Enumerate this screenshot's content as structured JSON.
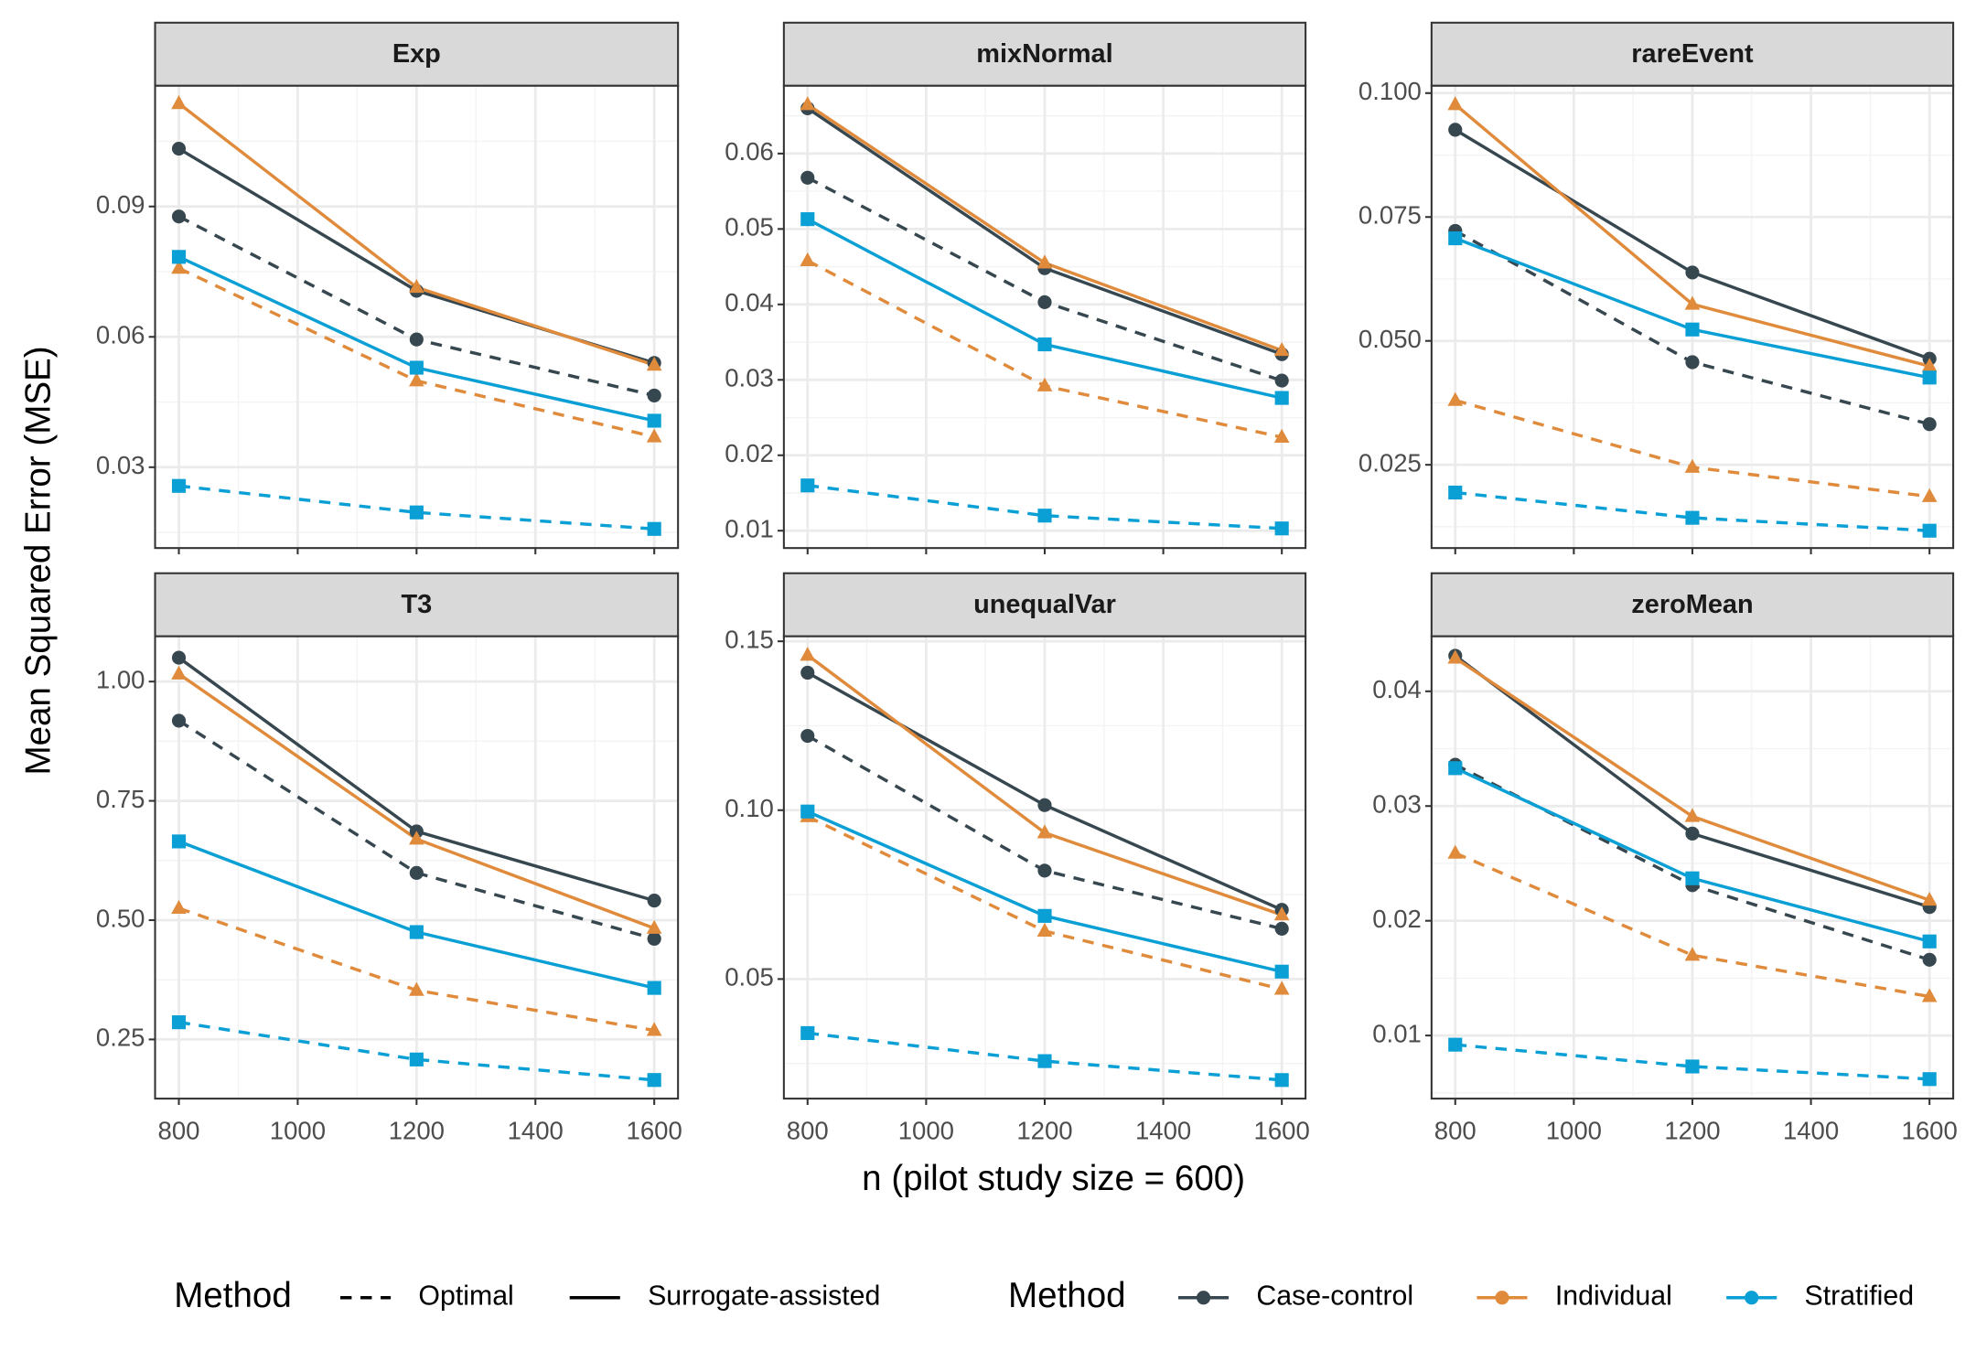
{
  "x_label": "n (pilot study size = 600)",
  "y_label": "Mean Squared Error (MSE)",
  "legends": {
    "linetype": {
      "title": "Method",
      "entries": [
        {
          "name": "Optimal",
          "dashed": true
        },
        {
          "name": "Surrogate-assisted",
          "dashed": false
        }
      ]
    },
    "color": {
      "title": "Method",
      "entries": [
        {
          "name": "Case-control",
          "color": "#37474f",
          "marker": "circle"
        },
        {
          "name": "Individual",
          "color": "#e08b3c",
          "marker": "triangle"
        },
        {
          "name": "Stratified",
          "color": "#0aa0d6",
          "marker": "square"
        }
      ]
    }
  },
  "chart_data": [
    {
      "type": "line",
      "title": "Exp",
      "x": [
        800,
        1200,
        1600
      ],
      "xlim": [
        760,
        1640
      ],
      "xticks": [
        800,
        1000,
        1200,
        1400,
        1600
      ],
      "ylim": [
        0.0114,
        0.1178
      ],
      "yticks": [
        0.03,
        0.06,
        0.09
      ],
      "grid": true,
      "series": [
        {
          "name": "Case-control",
          "linetype": "Surrogate-assisted",
          "color": "#37474f",
          "values": [
            0.1033,
            0.0706,
            0.054
          ]
        },
        {
          "name": "Case-control",
          "linetype": "Optimal",
          "color": "#37474f",
          "values": [
            0.0877,
            0.0594,
            0.0465
          ]
        },
        {
          "name": "Individual",
          "linetype": "Surrogate-assisted",
          "color": "#e08b3c",
          "values": [
            0.1137,
            0.0714,
            0.0535
          ]
        },
        {
          "name": "Individual",
          "linetype": "Optimal",
          "color": "#e08b3c",
          "values": [
            0.0758,
            0.0499,
            0.037
          ]
        },
        {
          "name": "Stratified",
          "linetype": "Surrogate-assisted",
          "color": "#0aa0d6",
          "values": [
            0.0784,
            0.0529,
            0.0407
          ]
        },
        {
          "name": "Stratified",
          "linetype": "Optimal",
          "color": "#0aa0d6",
          "values": [
            0.0257,
            0.0196,
            0.0158
          ]
        }
      ]
    },
    {
      "type": "line",
      "title": "mixNormal",
      "x": [
        800,
        1200,
        1600
      ],
      "xlim": [
        760,
        1640
      ],
      "xticks": [
        800,
        1000,
        1200,
        1400,
        1600
      ],
      "ylim": [
        0.0077,
        0.069
      ],
      "yticks": [
        0.01,
        0.02,
        0.03,
        0.04,
        0.05,
        0.06
      ],
      "grid": true,
      "series": [
        {
          "name": "Case-control",
          "linetype": "Surrogate-assisted",
          "color": "#37474f",
          "values": [
            0.066,
            0.0448,
            0.0334
          ]
        },
        {
          "name": "Case-control",
          "linetype": "Optimal",
          "color": "#37474f",
          "values": [
            0.0568,
            0.0403,
            0.0299
          ]
        },
        {
          "name": "Individual",
          "linetype": "Surrogate-assisted",
          "color": "#e08b3c",
          "values": [
            0.0665,
            0.0455,
            0.0339
          ]
        },
        {
          "name": "Individual",
          "linetype": "Optimal",
          "color": "#e08b3c",
          "values": [
            0.0458,
            0.0292,
            0.0224
          ]
        },
        {
          "name": "Stratified",
          "linetype": "Surrogate-assisted",
          "color": "#0aa0d6",
          "values": [
            0.0513,
            0.0347,
            0.0276
          ]
        },
        {
          "name": "Stratified",
          "linetype": "Optimal",
          "color": "#0aa0d6",
          "values": [
            0.016,
            0.012,
            0.0103
          ]
        }
      ]
    },
    {
      "type": "line",
      "title": "rareEvent",
      "x": [
        800,
        1200,
        1600
      ],
      "xlim": [
        760,
        1640
      ],
      "xticks": [
        800,
        1000,
        1200,
        1400,
        1600
      ],
      "ylim": [
        0.0082,
        0.1015
      ],
      "yticks": [
        0.025,
        {
          "value": 0.05,
          "label": "0.050"
        },
        0.075,
        {
          "value": 0.1,
          "label": "0.100"
        }
      ],
      "grid": true,
      "series": [
        {
          "name": "Case-control",
          "linetype": "Surrogate-assisted",
          "color": "#37474f",
          "values": [
            0.0926,
            0.0638,
            0.0464
          ]
        },
        {
          "name": "Case-control",
          "linetype": "Optimal",
          "color": "#37474f",
          "values": [
            0.0722,
            0.0457,
            0.0332
          ]
        },
        {
          "name": "Individual",
          "linetype": "Surrogate-assisted",
          "color": "#e08b3c",
          "values": [
            0.0977,
            0.0574,
            0.0449
          ]
        },
        {
          "name": "Individual",
          "linetype": "Optimal",
          "color": "#e08b3c",
          "values": [
            0.038,
            0.0245,
            0.0186
          ]
        },
        {
          "name": "Stratified",
          "linetype": "Surrogate-assisted",
          "color": "#0aa0d6",
          "values": [
            0.0707,
            0.0523,
            0.0426
          ]
        },
        {
          "name": "Stratified",
          "linetype": "Optimal",
          "color": "#0aa0d6",
          "values": [
            0.0194,
            0.0143,
            0.0117
          ]
        }
      ]
    },
    {
      "type": "line",
      "title": "T3",
      "x": [
        800,
        1200,
        1600
      ],
      "xlim": [
        760,
        1640
      ],
      "xticks": [
        800,
        1000,
        1200,
        1400,
        1600
      ],
      "ylim": [
        0.126,
        1.095
      ],
      "yticks": [
        0.25,
        {
          "value": 0.5,
          "label": "0.50"
        },
        0.75,
        {
          "value": 1,
          "label": "1.00"
        }
      ],
      "grid": true,
      "series": [
        {
          "name": "Case-control",
          "linetype": "Surrogate-assisted",
          "color": "#37474f",
          "values": [
            1.05,
            0.686,
            0.541
          ]
        },
        {
          "name": "Case-control",
          "linetype": "Optimal",
          "color": "#37474f",
          "values": [
            0.918,
            0.599,
            0.461
          ]
        },
        {
          "name": "Individual",
          "linetype": "Surrogate-assisted",
          "color": "#e08b3c",
          "values": [
            1.016,
            0.67,
            0.483
          ]
        },
        {
          "name": "Individual",
          "linetype": "Optimal",
          "color": "#e08b3c",
          "values": [
            0.525,
            0.353,
            0.269
          ]
        },
        {
          "name": "Stratified",
          "linetype": "Surrogate-assisted",
          "color": "#0aa0d6",
          "values": [
            0.665,
            0.475,
            0.358
          ]
        },
        {
          "name": "Stratified",
          "linetype": "Optimal",
          "color": "#0aa0d6",
          "values": [
            0.286,
            0.208,
            0.165
          ]
        }
      ]
    },
    {
      "type": "line",
      "title": "unequalVar",
      "x": [
        800,
        1200,
        1600
      ],
      "xlim": [
        760,
        1640
      ],
      "xticks": [
        800,
        1000,
        1200,
        1400,
        1600
      ],
      "ylim": [
        0.0146,
        0.1515
      ],
      "yticks": [
        0.05,
        {
          "value": 0.1,
          "label": "0.10"
        },
        0.15
      ],
      "grid": true,
      "series": [
        {
          "name": "Case-control",
          "linetype": "Surrogate-assisted",
          "color": "#37474f",
          "values": [
            0.1407,
            0.1015,
            0.0705
          ]
        },
        {
          "name": "Case-control",
          "linetype": "Optimal",
          "color": "#37474f",
          "values": [
            0.122,
            0.0821,
            0.0649
          ]
        },
        {
          "name": "Individual",
          "linetype": "Surrogate-assisted",
          "color": "#e08b3c",
          "values": [
            0.1459,
            0.0933,
            0.069
          ]
        },
        {
          "name": "Individual",
          "linetype": "Optimal",
          "color": "#e08b3c",
          "values": [
            0.0981,
            0.0642,
            0.047
          ]
        },
        {
          "name": "Stratified",
          "linetype": "Surrogate-assisted",
          "color": "#0aa0d6",
          "values": [
            0.0996,
            0.0687,
            0.0522
          ]
        },
        {
          "name": "Stratified",
          "linetype": "Optimal",
          "color": "#0aa0d6",
          "values": [
            0.034,
            0.0257,
            0.0201
          ]
        }
      ]
    },
    {
      "type": "line",
      "title": "zeroMean",
      "x": [
        800,
        1200,
        1600
      ],
      "xlim": [
        760,
        1640
      ],
      "xticks": [
        800,
        1000,
        1200,
        1400,
        1600
      ],
      "ylim": [
        0.0045,
        0.0448
      ],
      "yticks": [
        0.01,
        0.02,
        0.03,
        0.04
      ],
      "grid": true,
      "series": [
        {
          "name": "Case-control",
          "linetype": "Surrogate-assisted",
          "color": "#37474f",
          "values": [
            0.0431,
            0.0276,
            0.0212
          ]
        },
        {
          "name": "Case-control",
          "linetype": "Optimal",
          "color": "#37474f",
          "values": [
            0.0336,
            0.0231,
            0.0166
          ]
        },
        {
          "name": "Individual",
          "linetype": "Surrogate-assisted",
          "color": "#e08b3c",
          "values": [
            0.0429,
            0.0291,
            0.0218
          ]
        },
        {
          "name": "Individual",
          "linetype": "Optimal",
          "color": "#e08b3c",
          "values": [
            0.0259,
            0.017,
            0.0134
          ]
        },
        {
          "name": "Stratified",
          "linetype": "Surrogate-assisted",
          "color": "#0aa0d6",
          "values": [
            0.0333,
            0.0237,
            0.0182
          ]
        },
        {
          "name": "Stratified",
          "linetype": "Optimal",
          "color": "#0aa0d6",
          "values": [
            0.0092,
            0.0073,
            0.0062
          ]
        }
      ]
    }
  ]
}
